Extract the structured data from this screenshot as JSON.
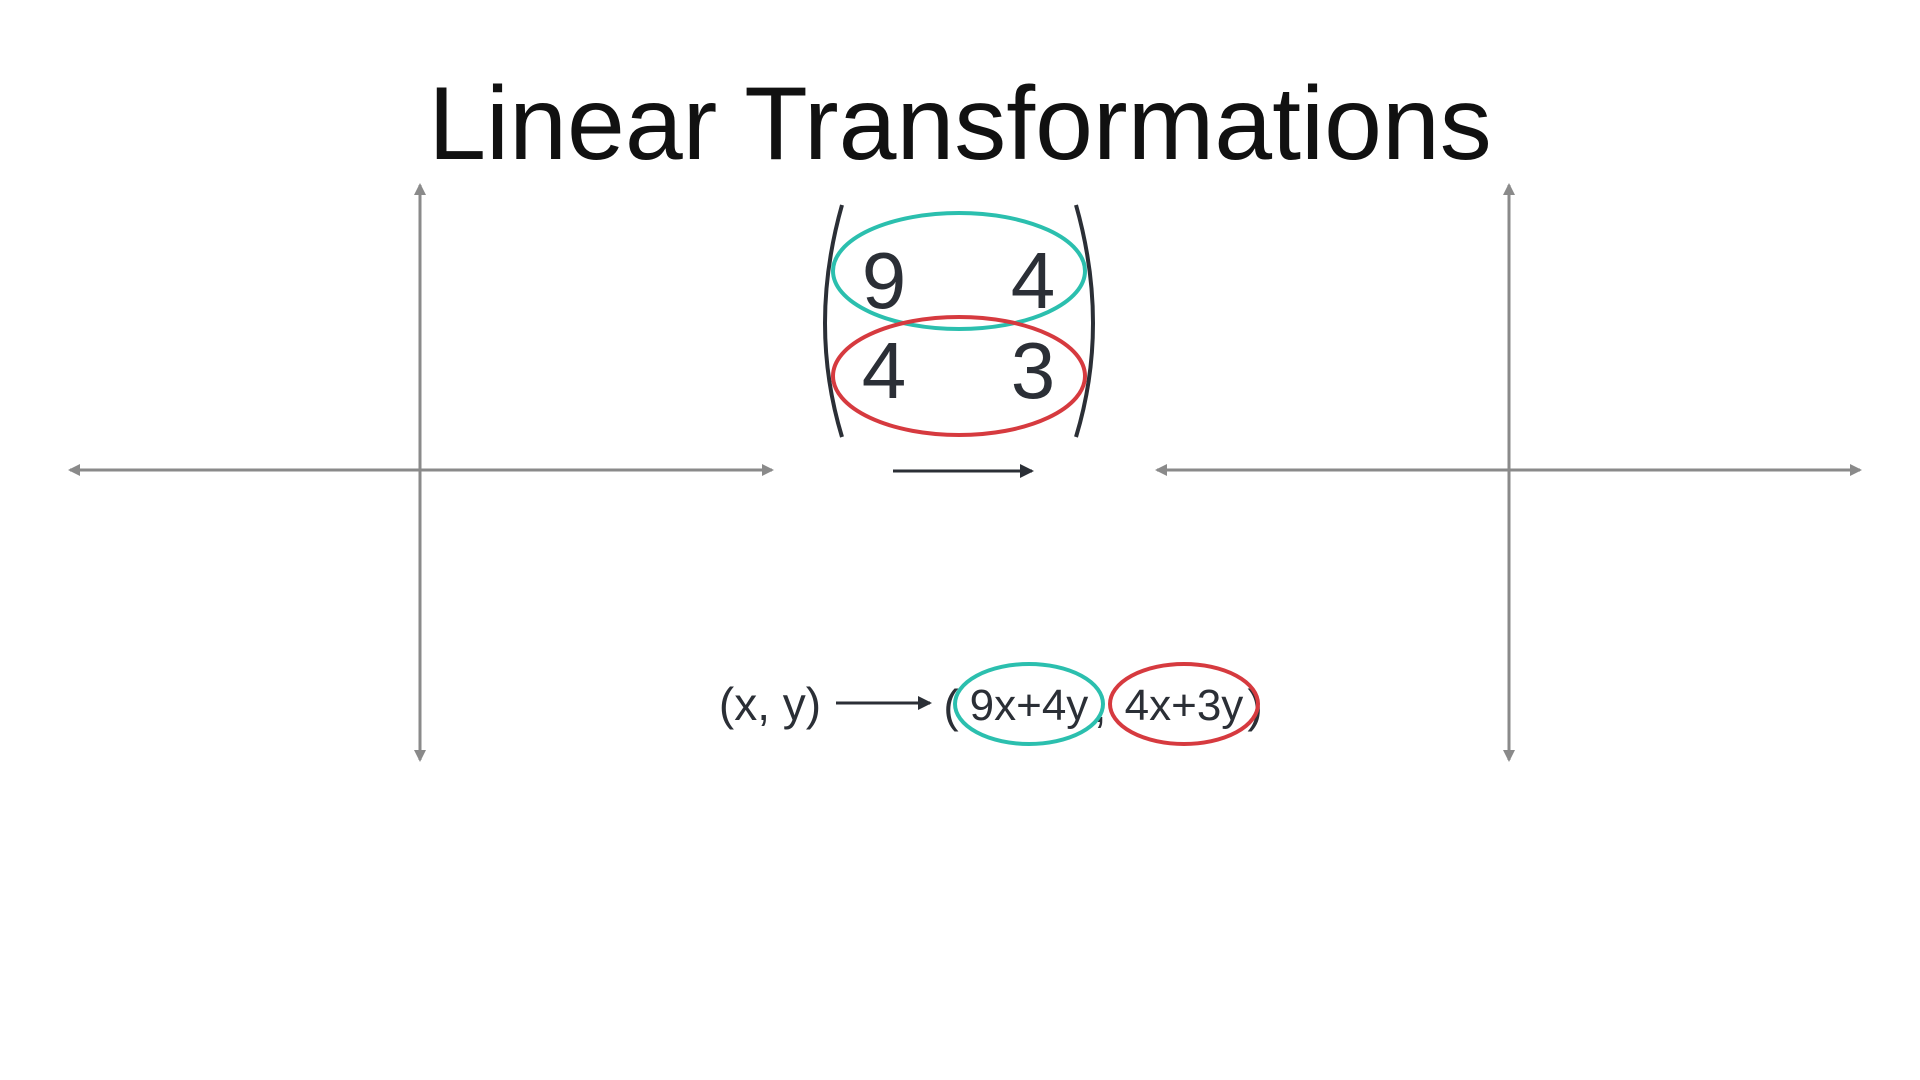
{
  "title": "Linear Transformations",
  "matrix": {
    "row1": [
      "9",
      "4"
    ],
    "row2": [
      "4",
      "3"
    ]
  },
  "mapping": {
    "input": "(x, y)",
    "open_paren": "(",
    "output_x": "9x+4y",
    "separator": ",",
    "output_y": "4x+3y",
    "close_paren": ")"
  },
  "colors": {
    "row1_highlight": "#2bbfae",
    "row2_highlight": "#d63a3f",
    "axes": "#8a8a8a",
    "arrow": "#2b2f36",
    "text": "#2b2f36"
  }
}
